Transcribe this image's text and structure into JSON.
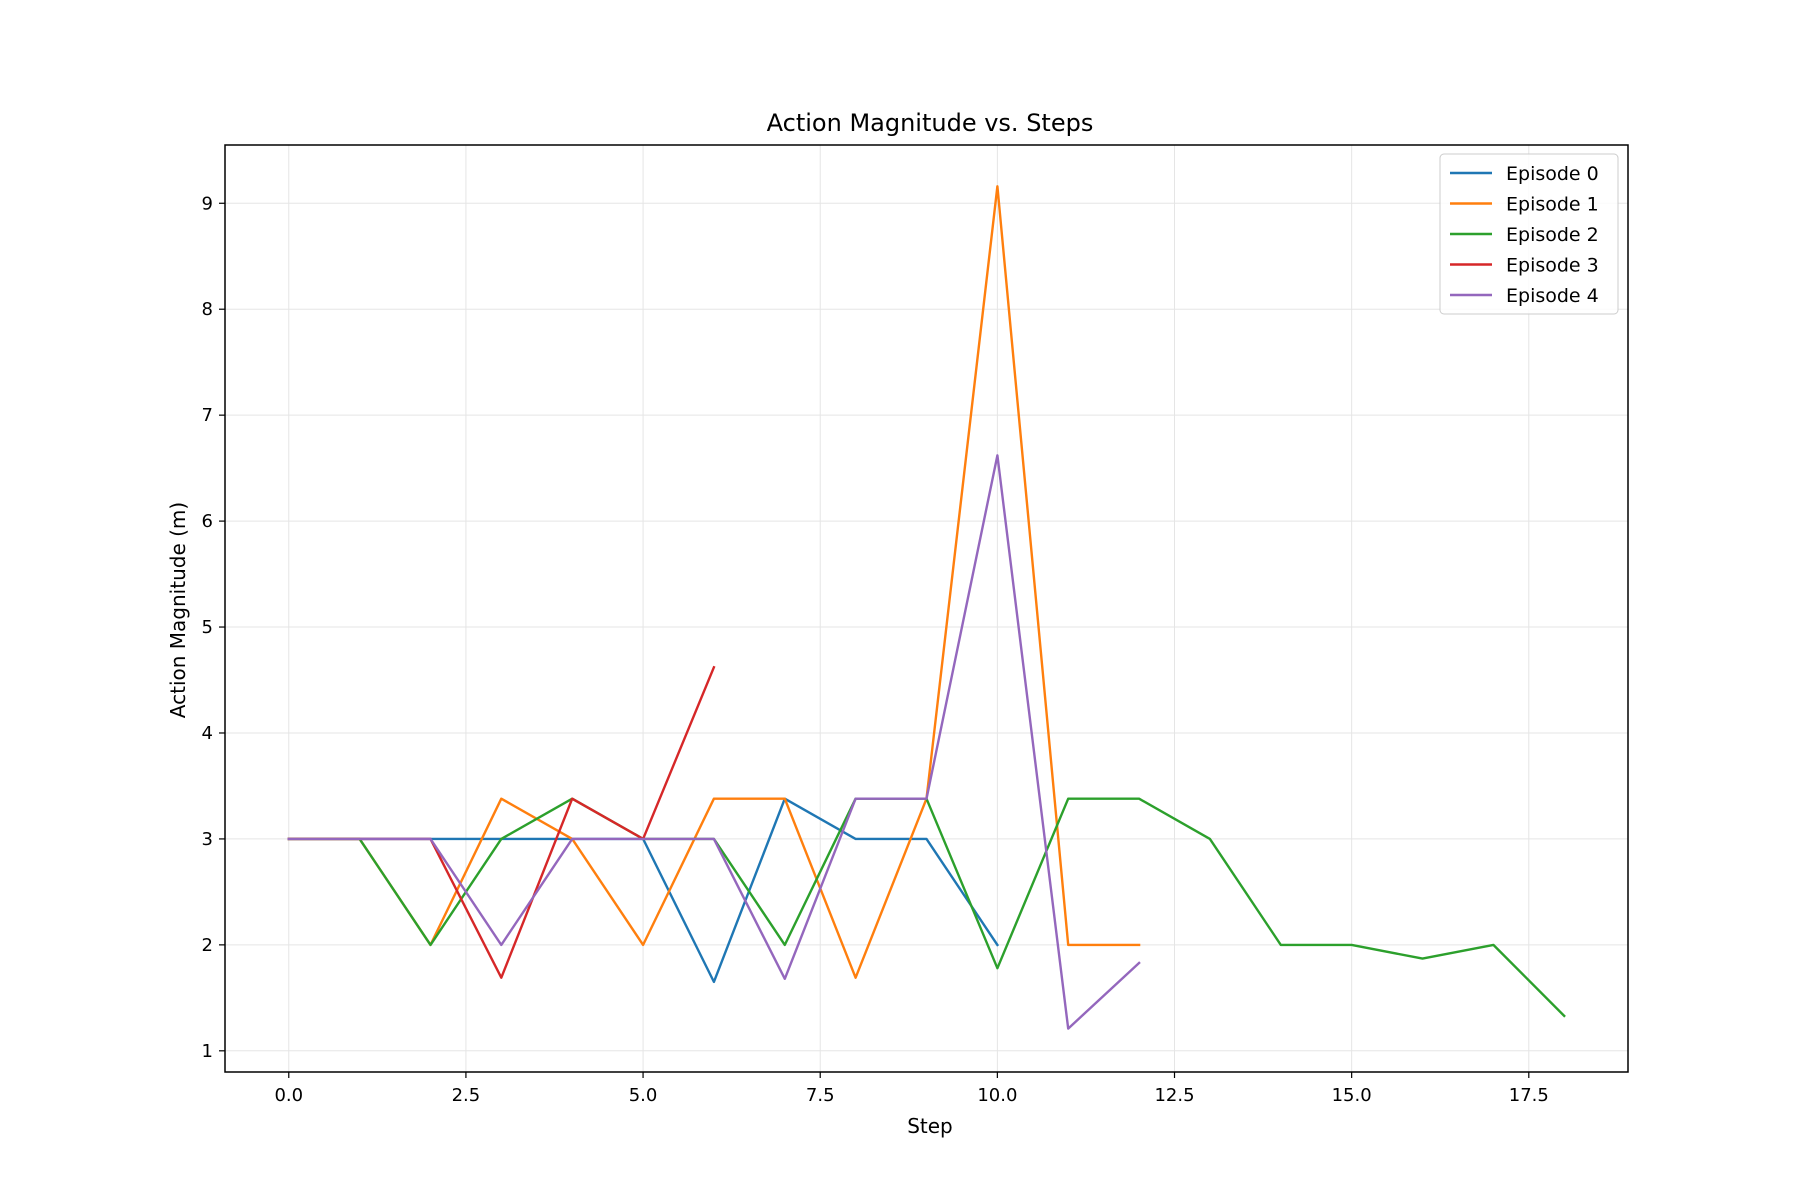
{
  "chart_data": {
    "type": "line",
    "title": "Action Magnitude vs. Steps",
    "xlabel": "Step",
    "ylabel": "Action Magnitude (m)",
    "xlim": [
      -0.9,
      18.9
    ],
    "ylim": [
      0.8,
      9.55
    ],
    "xticks": [
      0.0,
      2.5,
      5.0,
      7.5,
      10.0,
      12.5,
      15.0,
      17.5
    ],
    "xtick_labels": [
      "0.0",
      "2.5",
      "5.0",
      "7.5",
      "10.0",
      "12.5",
      "15.0",
      "17.5"
    ],
    "yticks": [
      1,
      2,
      3,
      4,
      5,
      6,
      7,
      8,
      9
    ],
    "ytick_labels": [
      "1",
      "2",
      "3",
      "4",
      "5",
      "6",
      "7",
      "8",
      "9"
    ],
    "grid": true,
    "legend_position": "top-right",
    "series": [
      {
        "name": "Episode 0",
        "color": "#1f77b4",
        "x": [
          0,
          1,
          2,
          3,
          4,
          5,
          6,
          7,
          8,
          9,
          10
        ],
        "y": [
          3.0,
          3.0,
          3.0,
          3.0,
          3.0,
          3.0,
          1.65,
          3.38,
          3.0,
          3.0,
          2.0
        ]
      },
      {
        "name": "Episode 1",
        "color": "#ff7f0e",
        "x": [
          0,
          1,
          2,
          3,
          4,
          5,
          6,
          7,
          8,
          9,
          10,
          11,
          12
        ],
        "y": [
          3.0,
          3.0,
          2.0,
          3.38,
          3.0,
          2.0,
          3.38,
          3.38,
          1.69,
          3.38,
          9.16,
          2.0,
          2.0
        ]
      },
      {
        "name": "Episode 2",
        "color": "#2ca02c",
        "x": [
          0,
          1,
          2,
          3,
          4,
          5,
          6,
          7,
          8,
          9,
          10,
          11,
          12,
          13,
          14,
          15,
          16,
          17,
          18
        ],
        "y": [
          3.0,
          3.0,
          2.0,
          3.0,
          3.38,
          3.0,
          3.0,
          2.0,
          3.38,
          3.38,
          1.78,
          3.38,
          3.38,
          3.0,
          2.0,
          2.0,
          1.87,
          2.0,
          1.33
        ]
      },
      {
        "name": "Episode 3",
        "color": "#d62728",
        "x": [
          0,
          1,
          2,
          3,
          4,
          5,
          6
        ],
        "y": [
          3.0,
          3.0,
          3.0,
          1.69,
          3.38,
          3.0,
          4.62
        ]
      },
      {
        "name": "Episode 4",
        "color": "#9467bd",
        "x": [
          0,
          1,
          2,
          3,
          4,
          5,
          6,
          7,
          8,
          9,
          10,
          11,
          12
        ],
        "y": [
          3.0,
          3.0,
          3.0,
          2.0,
          3.0,
          3.0,
          3.0,
          1.68,
          3.38,
          3.38,
          6.62,
          1.21,
          1.83
        ]
      }
    ]
  }
}
